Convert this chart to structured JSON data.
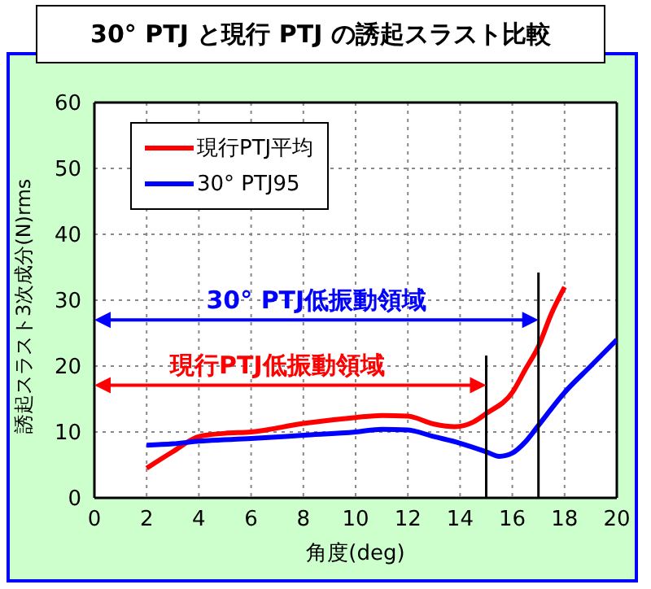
{
  "chart_data": {
    "type": "line",
    "title": "30° PTJ と現行 PTJ の誘起スラスト比較",
    "xlabel": "角度(deg)",
    "ylabel": "誘起スラスト3次成分(N)rms",
    "series": [
      {
        "name": "現行PTJ平均",
        "color": "#ff0000",
        "x": [
          2,
          3,
          4,
          5,
          6,
          8,
          10,
          11,
          12,
          13,
          13.8,
          14.5,
          15,
          16,
          16.5,
          17,
          17.5,
          18
        ],
        "values": [
          4.5,
          7,
          9.3,
          9.8,
          10,
          11.3,
          12.2,
          12.5,
          12.4,
          11.2,
          10.8,
          11.5,
          12.8,
          16,
          19.5,
          23,
          28,
          32
        ]
      },
      {
        "name": "30° PTJ95",
        "color": "#0000ff",
        "x": [
          2,
          3,
          4,
          6,
          8,
          10,
          11,
          12,
          13,
          14,
          15,
          15.5,
          16,
          16.5,
          17,
          18,
          19,
          20
        ],
        "values": [
          8,
          8.2,
          8.6,
          9,
          9.5,
          10,
          10.4,
          10.3,
          9.3,
          8.3,
          7,
          6.3,
          6.8,
          8.5,
          11,
          16,
          20,
          24
        ]
      }
    ],
    "xlim": [
      0,
      20
    ],
    "xticks": [
      0,
      2,
      4,
      6,
      8,
      10,
      12,
      14,
      16,
      18,
      20
    ],
    "ylim": [
      0,
      60
    ],
    "yticks": [
      0,
      10,
      20,
      30,
      40,
      50,
      60
    ],
    "ref_lines": [
      {
        "axis": "x",
        "value": 15,
        "color": "#000000"
      },
      {
        "axis": "x",
        "value": 17,
        "color": "#000000"
      }
    ],
    "annotations": [
      "30° PTJ低振動領域",
      "現行PTJ低振動領域"
    ],
    "grid": true,
    "legend": "top left",
    "marker": "none",
    "line_style": "solid"
  }
}
